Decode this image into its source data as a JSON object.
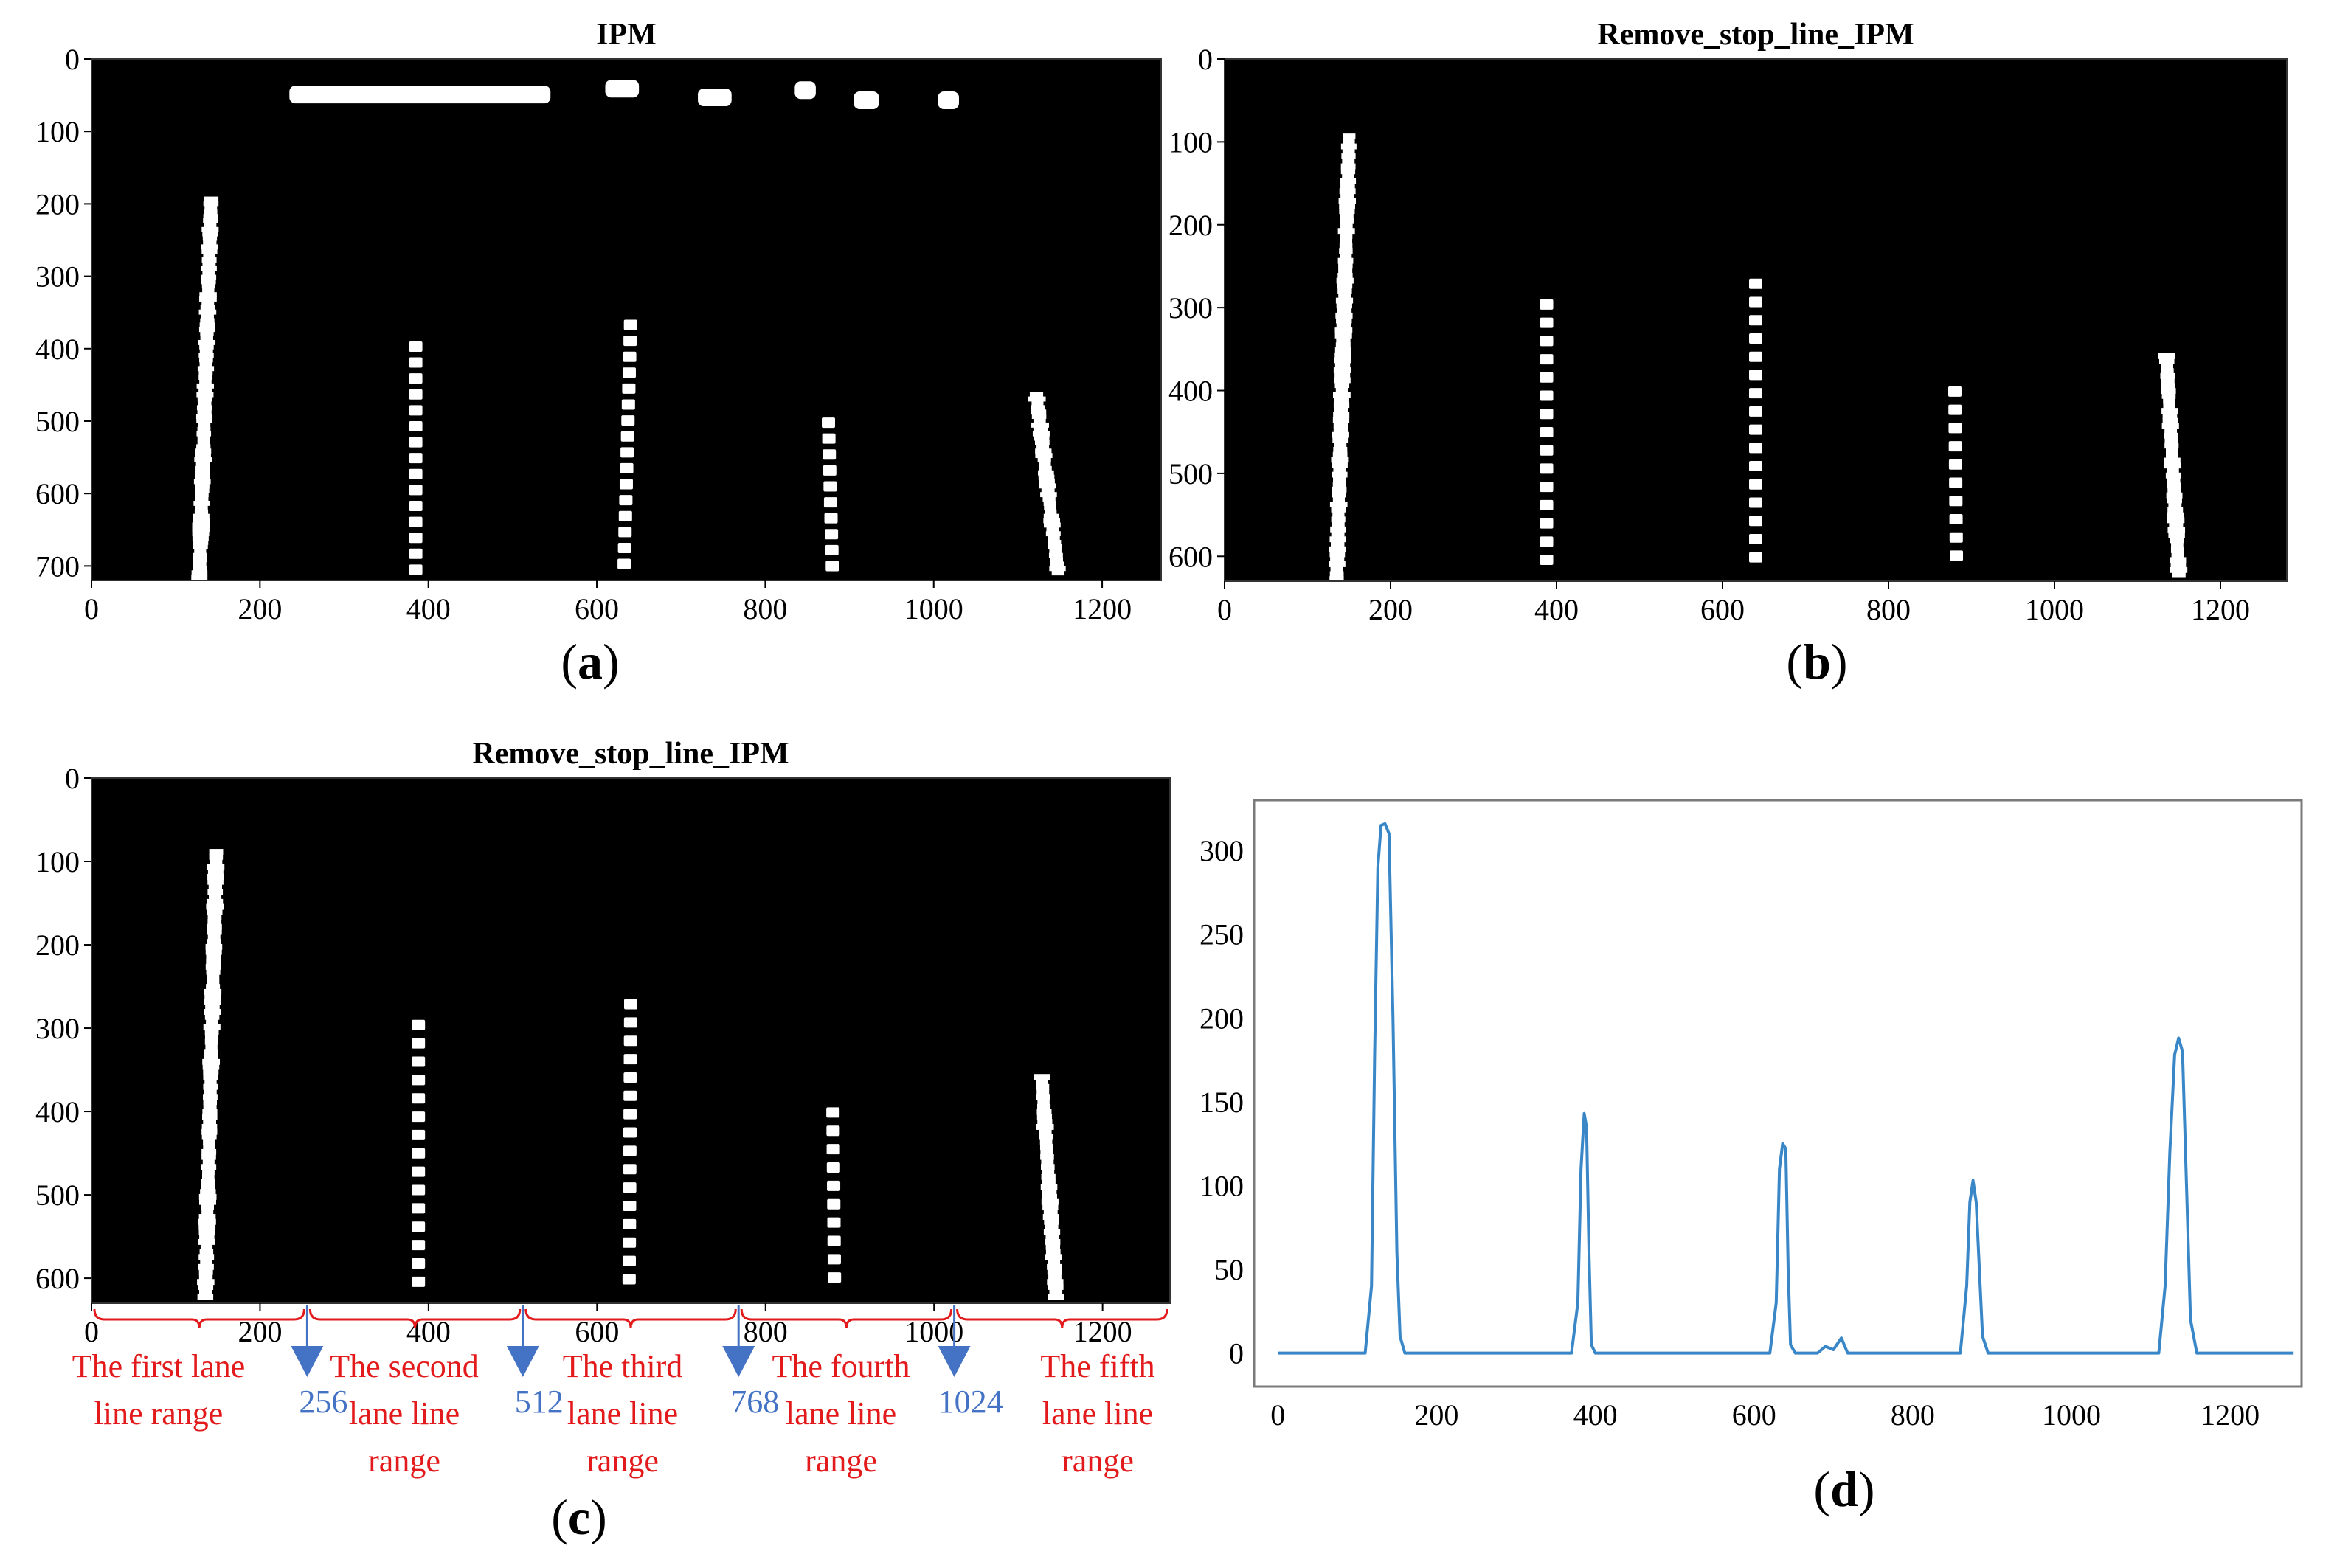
{
  "chart_data": [
    {
      "id": "a",
      "type": "heatmap",
      "title": "IPM",
      "panel_label": "a",
      "xlim": [
        0,
        1270
      ],
      "ylim": [
        0,
        720
      ],
      "xticks": [
        0,
        200,
        400,
        600,
        800,
        1000,
        1200
      ],
      "yticks": [
        0,
        100,
        200,
        300,
        400,
        500,
        600,
        700
      ],
      "background": "#000000",
      "stop_line_segments": [
        {
          "x1": 235,
          "x2": 545,
          "y": 48
        },
        {
          "x1": 610,
          "x2": 650,
          "y": 40
        },
        {
          "x1": 720,
          "x2": 760,
          "y": 52
        },
        {
          "x1": 835,
          "x2": 860,
          "y": 42
        },
        {
          "x1": 905,
          "x2": 935,
          "y": 56
        },
        {
          "x1": 1005,
          "x2": 1030,
          "y": 56
        }
      ],
      "lane_markings": [
        {
          "x_top": 142,
          "x_bottom": 128,
          "y_top": 190,
          "y_bottom": 715,
          "style": "solid"
        },
        {
          "x_top": 385,
          "x_bottom": 385,
          "y_top": 390,
          "y_bottom": 710,
          "style": "dashed"
        },
        {
          "x_top": 640,
          "x_bottom": 632,
          "y_top": 360,
          "y_bottom": 710,
          "style": "dashed"
        },
        {
          "x_top": 875,
          "x_bottom": 880,
          "y_top": 495,
          "y_bottom": 710,
          "style": "dashed"
        },
        {
          "x_top": 1122,
          "x_bottom": 1148,
          "y_top": 460,
          "y_bottom": 710,
          "style": "solid"
        }
      ]
    },
    {
      "id": "b",
      "type": "heatmap",
      "title": "Remove_stop_line_IPM",
      "panel_label": "b",
      "xlim": [
        0,
        1280
      ],
      "ylim": [
        0,
        630
      ],
      "xticks": [
        0,
        200,
        400,
        600,
        800,
        1000,
        1200
      ],
      "yticks": [
        0,
        100,
        200,
        300,
        400,
        500,
        600
      ],
      "background": "#000000",
      "lane_markings": [
        {
          "x_top": 150,
          "x_bottom": 135,
          "y_top": 90,
          "y_bottom": 625,
          "style": "solid"
        },
        {
          "x_top": 388,
          "x_bottom": 388,
          "y_top": 290,
          "y_bottom": 615,
          "style": "dashed"
        },
        {
          "x_top": 640,
          "x_bottom": 640,
          "y_top": 265,
          "y_bottom": 615,
          "style": "dashed"
        },
        {
          "x_top": 880,
          "x_bottom": 882,
          "y_top": 395,
          "y_bottom": 615,
          "style": "dashed"
        },
        {
          "x_top": 1135,
          "x_bottom": 1150,
          "y_top": 355,
          "y_bottom": 620,
          "style": "solid"
        }
      ]
    },
    {
      "id": "c",
      "type": "heatmap",
      "title": "Remove_stop_line_IPM",
      "panel_label": "c",
      "xlim": [
        0,
        1280
      ],
      "ylim": [
        0,
        630
      ],
      "xticks": [
        0,
        200,
        400,
        600,
        800,
        1000,
        1200
      ],
      "yticks": [
        0,
        100,
        200,
        300,
        400,
        500,
        600
      ],
      "background": "#000000",
      "lane_markings": [
        {
          "x_top": 148,
          "x_bottom": 135,
          "y_top": 85,
          "y_bottom": 625,
          "style": "solid"
        },
        {
          "x_top": 388,
          "x_bottom": 388,
          "y_top": 290,
          "y_bottom": 615,
          "style": "dashed"
        },
        {
          "x_top": 640,
          "x_bottom": 638,
          "y_top": 265,
          "y_bottom": 615,
          "style": "dashed"
        },
        {
          "x_top": 880,
          "x_bottom": 882,
          "y_top": 395,
          "y_bottom": 615,
          "style": "dashed"
        },
        {
          "x_top": 1128,
          "x_bottom": 1145,
          "y_top": 355,
          "y_bottom": 620,
          "style": "solid"
        }
      ],
      "boundaries": [
        256,
        512,
        768,
        1024
      ],
      "boundary_labels": [
        "256",
        "512",
        "768",
        "1024"
      ],
      "ranges": [
        {
          "from": 0,
          "to": 256,
          "lines": [
            "The first lane",
            "line range"
          ]
        },
        {
          "from": 256,
          "to": 512,
          "lines": [
            "The second",
            "lane line",
            "range"
          ]
        },
        {
          "from": 512,
          "to": 768,
          "lines": [
            "The third",
            "lane line",
            "range"
          ]
        },
        {
          "from": 768,
          "to": 1024,
          "lines": [
            "The fourth",
            "lane line",
            "range"
          ]
        },
        {
          "from": 1024,
          "to": 1280,
          "lines": [
            "The fifth",
            "lane line",
            "range"
          ]
        }
      ]
    },
    {
      "id": "d",
      "type": "line",
      "panel_label": "d",
      "xlim": [
        -30,
        1290
      ],
      "ylim": [
        -20,
        330
      ],
      "xticks": [
        0,
        200,
        400,
        600,
        800,
        1000,
        1200
      ],
      "yticks": [
        0,
        50,
        100,
        150,
        200,
        250,
        300
      ],
      "line_color": "#3a87c8",
      "series": [
        {
          "x": [
            0,
            110,
            118,
            122,
            126,
            130,
            135,
            140,
            145,
            150,
            154,
            160,
            370,
            378,
            382,
            386,
            389,
            392,
            395,
            400,
            620,
            628,
            632,
            636,
            640,
            643,
            646,
            652,
            660,
            680,
            690,
            700,
            710,
            718,
            730,
            860,
            868,
            872,
            876,
            880,
            884,
            888,
            895,
            1110,
            1118,
            1124,
            1130,
            1135,
            1140,
            1145,
            1150,
            1158,
            1280
          ],
          "y": [
            0,
            0,
            40,
            180,
            290,
            315,
            316,
            310,
            200,
            60,
            10,
            0,
            0,
            30,
            110,
            143,
            135,
            60,
            5,
            0,
            0,
            30,
            110,
            125,
            122,
            50,
            5,
            0,
            0,
            0,
            4,
            2,
            9,
            0,
            0,
            0,
            40,
            90,
            103,
            90,
            50,
            10,
            0,
            0,
            40,
            120,
            178,
            188,
            180,
            100,
            20,
            0,
            0
          ]
        }
      ]
    }
  ]
}
